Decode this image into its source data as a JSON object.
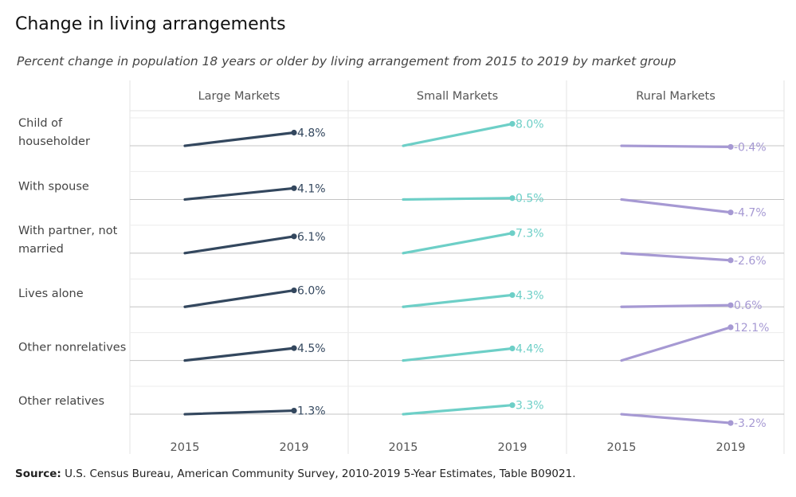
{
  "title": "Change in living arrangements",
  "subtitle": "Percent change in population 18 years or older by living arrangement from 2015 to 2019 by market group",
  "source": {
    "label": "Source:",
    "text": " U.S. Census Bureau, American Community Survey, 2010-2019 5-Year Estimates, Table B09021."
  },
  "colors": {
    "Large Markets": "#33475e",
    "Small Markets": "#6dcfc7",
    "Rural Markets": "#a699d3",
    "grid": "#e3e3e3",
    "baseline": "#c4c4c4",
    "label": "#555555"
  },
  "chart_data": {
    "type": "line",
    "x": [
      "2015",
      "2019"
    ],
    "xlabel": "",
    "ylabel": "",
    "panels": [
      "Large Markets",
      "Small Markets",
      "Rural Markets"
    ],
    "rows": [
      "Child of\nhouseholder",
      "With spouse",
      "With partner, not\nmarried",
      "Lives alone",
      "Other nonrelatives",
      "Other relatives"
    ],
    "values": {
      "Large Markets": [
        4.8,
        4.1,
        6.1,
        6.0,
        4.5,
        1.3
      ],
      "Small Markets": [
        8.0,
        0.5,
        7.3,
        4.3,
        4.4,
        3.3
      ],
      "Rural Markets": [
        -0.4,
        -4.7,
        -2.6,
        0.6,
        12.1,
        -3.2
      ]
    },
    "value_labels": {
      "Large Markets": [
        "4.8%",
        "4.1%",
        "6.1%",
        "6.0%",
        "4.5%",
        "1.3%"
      ],
      "Small Markets": [
        "8.0%",
        "0.5%",
        "7.3%",
        "4.3%",
        "4.4%",
        "3.3%"
      ],
      "Rural Markets": [
        "-0.4%",
        "-4.7%",
        "-2.6%",
        "0.6%",
        "12.1%",
        "-3.2%"
      ]
    },
    "start_value": 0,
    "grid": true
  }
}
